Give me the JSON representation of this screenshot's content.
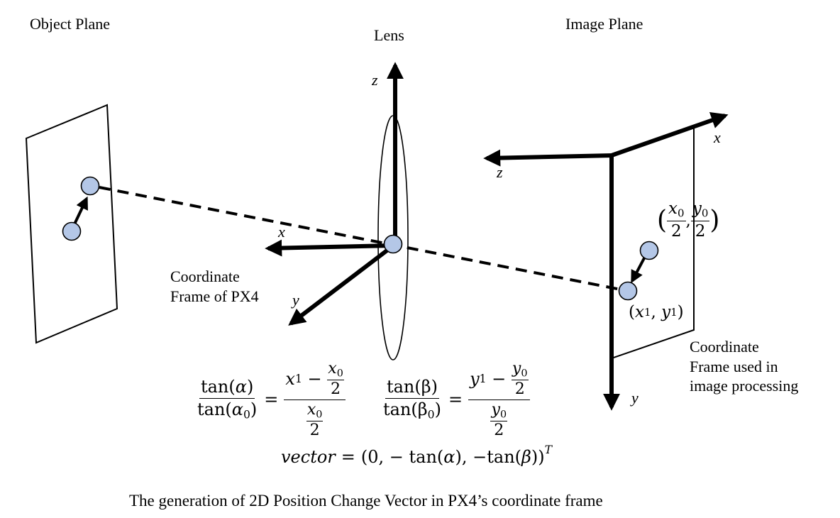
{
  "labels": {
    "object_plane": "Object Plane",
    "lens": "Lens",
    "image_plane": "Image Plane",
    "px4_frame_line1": "Coordinate",
    "px4_frame_line2": "Frame of PX4",
    "img_frame_line1": "Coordinate",
    "img_frame_line2": "Frame used in",
    "img_frame_line3": "image processing",
    "caption": "The generation of 2D Position Change Vector in PX4’s coordinate frame"
  },
  "axes": {
    "lens_z": "z",
    "lens_x": "x",
    "lens_y": "y",
    "image_x": "x",
    "image_z": "z",
    "image_y": "y"
  },
  "points": {
    "center_label": {
      "open": "(",
      "x_num": "x",
      "x_sub": "0",
      "x_den": "2",
      "comma": ",",
      "y_num": "y",
      "y_sub": "0",
      "y_den": "2",
      "close": ")"
    },
    "current_label": {
      "open": "(",
      "x": "x",
      "x_sub": "1",
      "comma": ", ",
      "y": "y",
      "y_sub": "1",
      "close": ")"
    }
  },
  "equations": {
    "alpha": {
      "lhs_num": "tan(",
      "lhs_num_var": "α",
      "lhs_num_close": ")",
      "lhs_den": "tan(",
      "lhs_den_var": "α",
      "lhs_den_sub": "0",
      "lhs_den_close": ")",
      "eq": "=",
      "rhs_num_var": "x",
      "rhs_num_sub": "1",
      "rhs_num_minus": " − ",
      "rhs_frac_num": "x",
      "rhs_frac_sub": "0",
      "rhs_frac_den": "2"
    },
    "beta": {
      "lhs_num": "tan(β)",
      "lhs_den": "tan(β",
      "lhs_den_sub": "0",
      "lhs_den_close": ")",
      "eq": "=",
      "rhs_num_var": "y",
      "rhs_num_sub": "1",
      "rhs_num_minus": " − ",
      "rhs_frac_num": "y",
      "rhs_frac_sub": "0",
      "rhs_frac_den": "2"
    },
    "vector": {
      "name": "vector",
      "eq": "=",
      "body": "(0, − tan(",
      "alpha": "α",
      "mid": "), −tan(",
      "beta": "β",
      "close": "))",
      "sup": "T"
    }
  },
  "colors": {
    "point_fill": "#b4c7e7",
    "stroke": "#000000"
  }
}
